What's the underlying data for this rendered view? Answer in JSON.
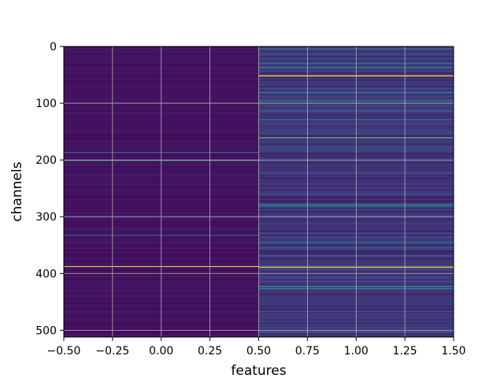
{
  "chart_data": {
    "type": "heatmap",
    "title": "",
    "xlabel": "features",
    "ylabel": "channels",
    "xlim": [
      -0.5,
      1.5
    ],
    "ylim": [
      512,
      0
    ],
    "xticks": [
      -0.5,
      -0.25,
      0.0,
      0.25,
      0.5,
      0.75,
      1.0,
      1.25,
      1.5
    ],
    "xtick_labels": [
      "−0.50",
      "−0.25",
      "0.00",
      "0.25",
      "0.50",
      "0.75",
      "1.00",
      "1.25",
      "1.50"
    ],
    "yticks": [
      0,
      100,
      200,
      300,
      400,
      500
    ],
    "ytick_labels": [
      "0",
      "100",
      "200",
      "300",
      "400",
      "500"
    ],
    "grid": true,
    "colormap": "viridis",
    "rows": 512,
    "columns": [
      0,
      1
    ],
    "column_base_intensity": [
      0.02,
      0.08
    ],
    "highlight_rows": [
      {
        "channel": 3,
        "feature": 1,
        "value": 0.35
      },
      {
        "channel": 13,
        "feature": 1,
        "value": 0.28
      },
      {
        "channel": 29,
        "feature": 1,
        "value": 0.4
      },
      {
        "channel": 36,
        "feature": 1,
        "value": 0.45
      },
      {
        "channel": 51,
        "feature": 1,
        "value": 1.0
      },
      {
        "channel": 80,
        "feature": 1,
        "value": 0.42
      },
      {
        "channel": 95,
        "feature": 1,
        "value": 0.48
      },
      {
        "channel": 112,
        "feature": 1,
        "value": 0.3
      },
      {
        "channel": 128,
        "feature": 1,
        "value": 0.38
      },
      {
        "channel": 160,
        "feature": 1,
        "value": 0.72
      },
      {
        "channel": 186,
        "feature": 0,
        "value": 0.35
      },
      {
        "channel": 200,
        "feature": 0,
        "value": 0.55
      },
      {
        "channel": 200,
        "feature": 1,
        "value": 0.3
      },
      {
        "channel": 222,
        "feature": 1,
        "value": 0.28
      },
      {
        "channel": 278,
        "feature": 1,
        "value": 0.5
      },
      {
        "channel": 281,
        "feature": 1,
        "value": 0.42
      },
      {
        "channel": 332,
        "feature": 0,
        "value": 0.3
      },
      {
        "channel": 344,
        "feature": 1,
        "value": 0.45
      },
      {
        "channel": 353,
        "feature": 1,
        "value": 0.4
      },
      {
        "channel": 368,
        "feature": 1,
        "value": 0.35
      },
      {
        "channel": 387,
        "feature": 0,
        "value": 0.9
      },
      {
        "channel": 388,
        "feature": 1,
        "value": 0.95
      },
      {
        "channel": 422,
        "feature": 1,
        "value": 0.48
      },
      {
        "channel": 426,
        "feature": 1,
        "value": 0.45
      },
      {
        "channel": 502,
        "feature": 1,
        "value": 0.35
      }
    ]
  }
}
